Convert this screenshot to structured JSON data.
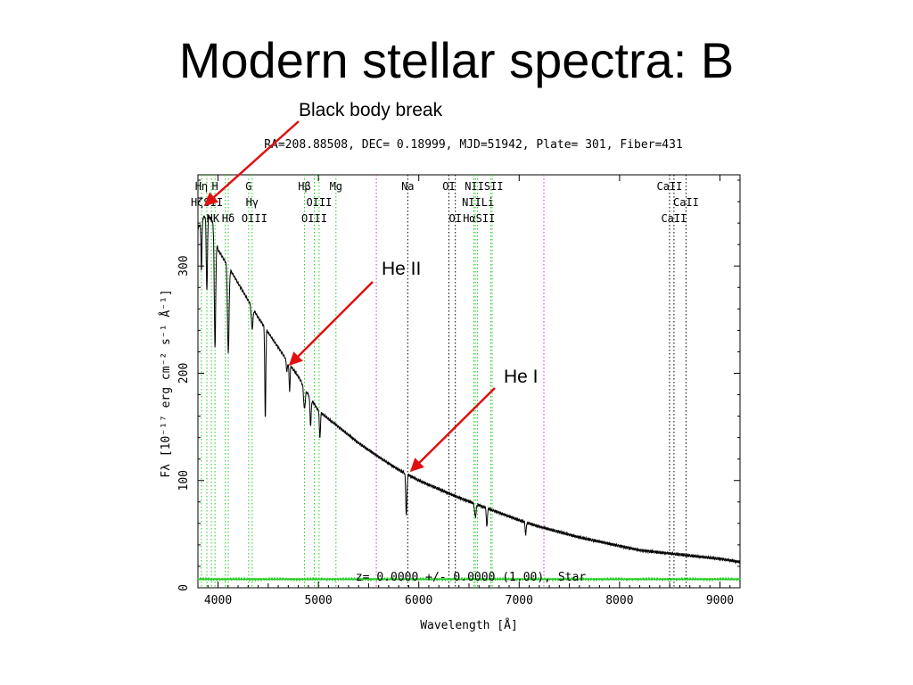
{
  "slide": {
    "title": "Modern stellar spectra: B"
  },
  "annotations": {
    "black_body_break": "Black body break",
    "he_ii": "He II",
    "he_i": "He I",
    "arrow_color": "#e01010"
  },
  "chart_data": {
    "type": "line",
    "header": "RA=208.88508, DEC= 0.18999, MJD=51942, Plate= 301, Fiber=431",
    "footer": "z= 0.0000 +/- 0.0000 (1.00), Star",
    "xlabel": "Wavelength [Å]",
    "ylabel": "Fλ [10⁻¹⁷ erg cm⁻² s⁻¹ Å⁻¹]",
    "xlim": [
      3800,
      9200
    ],
    "ylim": [
      0,
      385
    ],
    "xticks": [
      4000,
      5000,
      6000,
      7000,
      8000,
      9000
    ],
    "yticks": [
      0,
      100,
      200,
      300
    ],
    "continuum": {
      "x": [
        3800,
        3850,
        3900,
        3950,
        4000,
        4100,
        4200,
        4300,
        4400,
        4500,
        4600,
        4700,
        4800,
        4900,
        5000,
        5200,
        5400,
        5600,
        5800,
        6000,
        6200,
        6400,
        6600,
        6800,
        7000,
        7200,
        7400,
        7600,
        7800,
        8000,
        8200,
        8400,
        8600,
        8800,
        9000,
        9200
      ],
      "y": [
        335,
        345,
        348,
        340,
        315,
        300,
        284,
        268,
        252,
        238,
        224,
        210,
        197,
        180,
        165,
        150,
        135,
        122,
        110,
        100,
        92,
        84,
        77,
        70,
        63,
        57,
        52,
        47,
        43,
        39,
        35,
        33,
        31,
        29,
        27,
        24
      ]
    },
    "absorption_lines": [
      {
        "x": 3835,
        "depth": 45,
        "width": 5
      },
      {
        "x": 3889,
        "depth": 70,
        "width": 6
      },
      {
        "x": 3970,
        "depth": 105,
        "width": 7
      },
      {
        "x": 4102,
        "depth": 80,
        "width": 8
      },
      {
        "x": 4340,
        "depth": 20,
        "width": 8
      },
      {
        "x": 4471,
        "depth": 85,
        "width": 5
      },
      {
        "x": 4686,
        "depth": 10,
        "width": 6
      },
      {
        "x": 4713,
        "depth": 25,
        "width": 5
      },
      {
        "x": 4861,
        "depth": 20,
        "width": 8
      },
      {
        "x": 4922,
        "depth": 25,
        "width": 6
      },
      {
        "x": 5015,
        "depth": 25,
        "width": 5
      },
      {
        "x": 5876,
        "depth": 38,
        "width": 6
      },
      {
        "x": 6563,
        "depth": 12,
        "width": 8
      },
      {
        "x": 6678,
        "depth": 18,
        "width": 5
      },
      {
        "x": 7065,
        "depth": 12,
        "width": 5
      }
    ],
    "line_markers": {
      "green": [
        3835,
        3889,
        3934,
        3970,
        4072,
        4102,
        4305,
        4340,
        4861,
        4959,
        5007,
        5175,
        6548,
        6563,
        6584,
        6717,
        6731
      ],
      "black": [
        5890,
        6300,
        6364,
        8498,
        8542,
        8662
      ],
      "magenta": [
        5577,
        7246
      ],
      "colors": {
        "green": "#22cc22",
        "black": "#000000",
        "magenta": "#cc33cc"
      }
    },
    "line_labels": [
      {
        "text": "Hη",
        "x": 3835,
        "row": 0
      },
      {
        "text": "H",
        "x": 3970,
        "row": 0
      },
      {
        "text": "G",
        "x": 4305,
        "row": 0
      },
      {
        "text": "Hβ",
        "x": 4861,
        "row": 0
      },
      {
        "text": "Mg",
        "x": 5175,
        "row": 0
      },
      {
        "text": "Na",
        "x": 5890,
        "row": 0
      },
      {
        "text": "OI",
        "x": 6300,
        "row": 0
      },
      {
        "text": "NIISII",
        "x": 6650,
        "row": 0
      },
      {
        "text": "CaII",
        "x": 8498,
        "row": 0
      },
      {
        "text": "HζSII",
        "x": 3889,
        "row": 1
      },
      {
        "text": "Hγ",
        "x": 4340,
        "row": 1
      },
      {
        "text": "OIII",
        "x": 5007,
        "row": 1
      },
      {
        "text": "NIILi",
        "x": 6590,
        "row": 1
      },
      {
        "text": "CaII",
        "x": 8662,
        "row": 1
      },
      {
        "text": "HK",
        "x": 3950,
        "row": 2
      },
      {
        "text": "Hδ",
        "x": 4102,
        "row": 2
      },
      {
        "text": "OIII",
        "x": 4363,
        "row": 2
      },
      {
        "text": "OIII",
        "x": 4959,
        "row": 2
      },
      {
        "text": "OI",
        "x": 6364,
        "row": 2
      },
      {
        "text": "HαSII",
        "x": 6600,
        "row": 2
      },
      {
        "text": "CaII",
        "x": 8542,
        "row": 2
      }
    ],
    "noise_line": {
      "y": 8,
      "color": "#22cc22"
    },
    "grid": false
  }
}
